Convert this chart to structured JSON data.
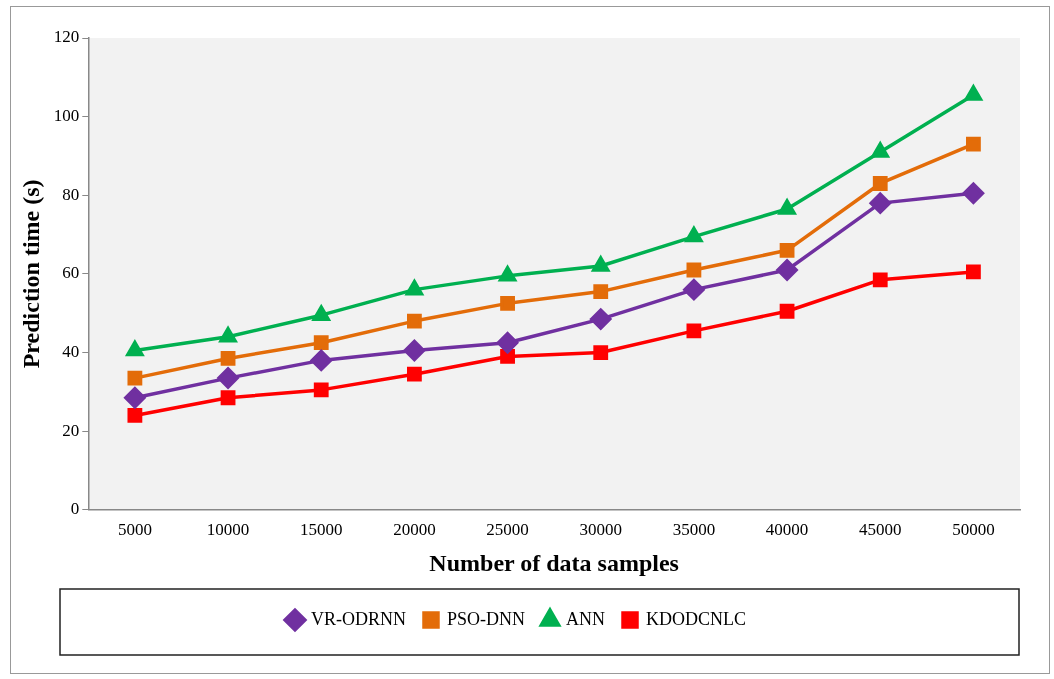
{
  "chart_data": {
    "type": "line",
    "xlabel": "Number of data samples",
    "ylabel": "Prediction time (s)",
    "categories": [
      "5000",
      "10000",
      "15000",
      "20000",
      "25000",
      "30000",
      "35000",
      "40000",
      "45000",
      "50000"
    ],
    "ylim": [
      0,
      120
    ],
    "yticks": [
      0,
      20,
      40,
      60,
      80,
      100,
      120
    ],
    "grid": false,
    "legend": "bottom",
    "line_style": "solid",
    "series": [
      {
        "name": "VR-ODRNN",
        "color": "#7030a0",
        "marker": "diamond",
        "values": [
          28.5,
          33.5,
          38,
          40.5,
          42.5,
          48.5,
          56,
          61,
          78,
          80.5
        ]
      },
      {
        "name": "PSO-DNN",
        "color": "#e36c09",
        "marker": "square",
        "values": [
          33.5,
          38.5,
          42.5,
          48,
          52.5,
          55.5,
          61,
          66,
          83,
          93
        ]
      },
      {
        "name": "ANN",
        "color": "#00b050",
        "marker": "triangle",
        "values": [
          40.5,
          44,
          49.5,
          56,
          59.5,
          62,
          69.5,
          76.5,
          91,
          105.5
        ]
      },
      {
        "name": "KDODCNLC",
        "color": "#ff0000",
        "marker": "square",
        "values": [
          24,
          28.5,
          30.5,
          34.5,
          39,
          40,
          45.5,
          50.5,
          58.5,
          60.5
        ]
      }
    ]
  }
}
